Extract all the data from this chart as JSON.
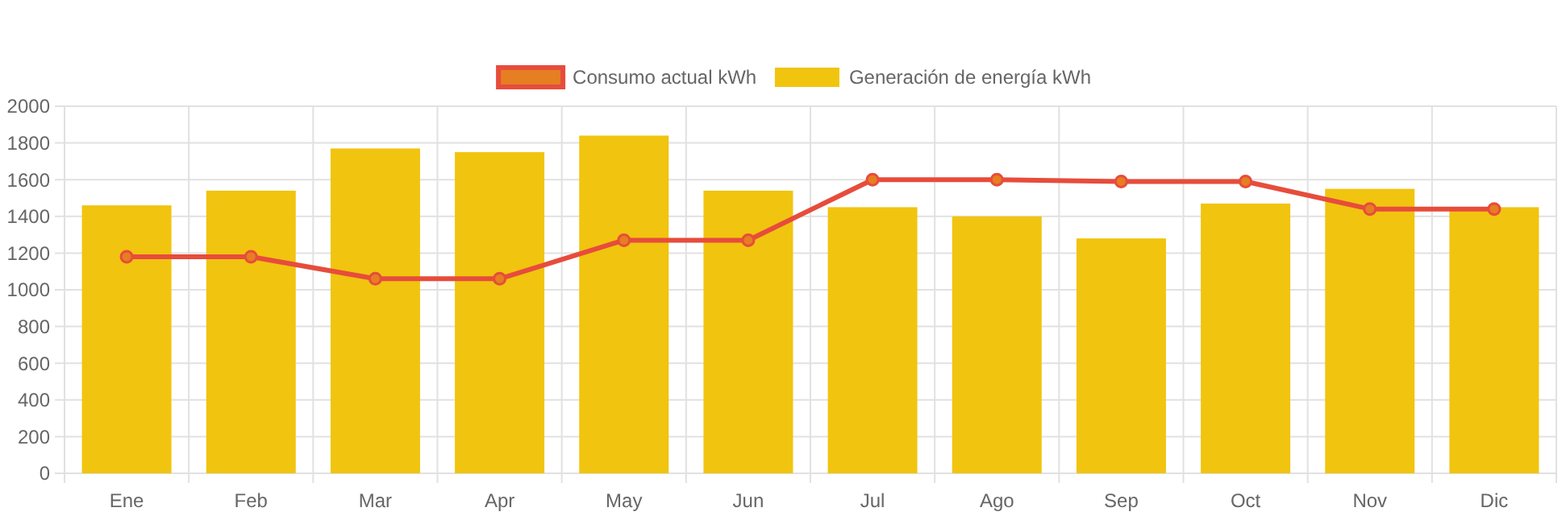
{
  "chart_data": {
    "type": "bar",
    "categories": [
      "Ene",
      "Feb",
      "Mar",
      "Apr",
      "May",
      "Jun",
      "Jul",
      "Ago",
      "Sep",
      "Oct",
      "Nov",
      "Dic"
    ],
    "series": [
      {
        "name": "Consumo actual kWh",
        "type": "line",
        "color": "#e74c3c",
        "marker": "circle",
        "values": [
          1180,
          1180,
          1060,
          1060,
          1270,
          1270,
          1600,
          1600,
          1590,
          1590,
          1440,
          1440
        ]
      },
      {
        "name": "Generación de energía kWh",
        "color": "#f1c40f",
        "values": [
          1460,
          1540,
          1770,
          1750,
          1840,
          1540,
          1450,
          1400,
          1280,
          1470,
          1550,
          1450
        ]
      }
    ],
    "ylim": [
      0,
      2000
    ],
    "yticks": [
      0,
      200,
      400,
      600,
      800,
      1000,
      1200,
      1400,
      1600,
      1800,
      2000
    ],
    "grid": true,
    "legend": "top"
  }
}
